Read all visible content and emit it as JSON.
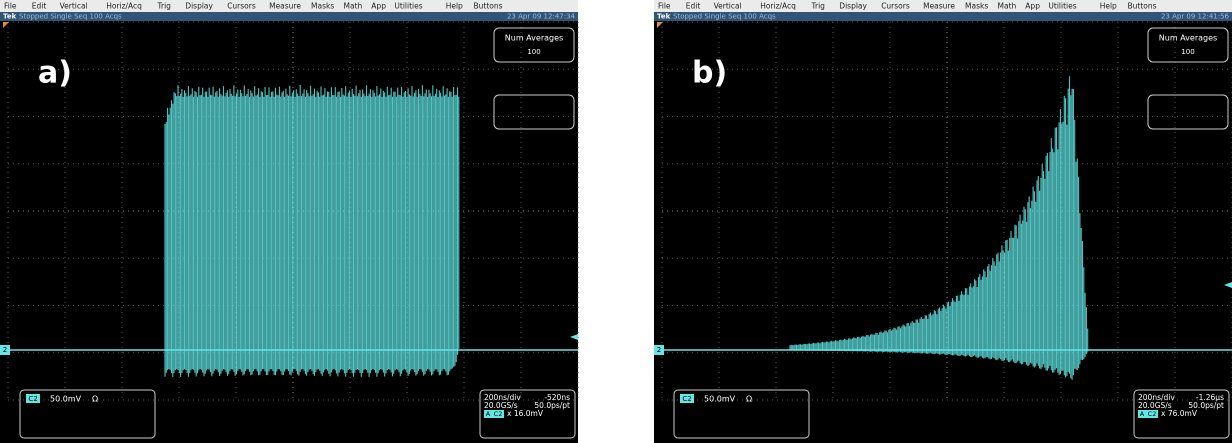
{
  "panels": [
    {
      "menu": [
        "File",
        "Edit",
        "Vertical",
        "Horiz/Acq",
        "Trig",
        "Display",
        "Cursors",
        "Measure",
        "Masks",
        "Math",
        "App",
        "Utilities",
        "Help",
        "Buttons"
      ],
      "status": {
        "brand": "Tek",
        "state": "Stopped Single Seq 100 Acqs",
        "timestamp": "23 Apr 09 12:47:34"
      },
      "label": "a)",
      "averages": {
        "title": "Num Averages",
        "value": "100"
      },
      "marker": "2",
      "channel": {
        "name": "C2",
        "scale": "50.0mV",
        "coupling": "Ω"
      },
      "timebase": {
        "division": "200ns/div",
        "delay": "-520ns",
        "rate": "20.0GS/s",
        "resolution": "50.0ps/pt",
        "trigger_source": "A",
        "trigger_channel": "C2",
        "trigger_level": "x 16.0mV"
      }
    },
    {
      "menu": [
        "File",
        "Edit",
        "Vertical",
        "Horiz/Acq",
        "Trig",
        "Display",
        "Cursors",
        "Measure",
        "Masks",
        "Math",
        "App",
        "Utilities",
        "Help",
        "Buttons"
      ],
      "status": {
        "brand": "Tek",
        "state": "Stopped Single Seq 100 Acqs",
        "timestamp": "23 Apr 09 12:41:56"
      },
      "label": "b)",
      "averages": {
        "title": "Num Averages",
        "value": "100"
      },
      "marker": "2",
      "channel": {
        "name": "C2",
        "scale": "50.0mV",
        "coupling": "Ω"
      },
      "timebase": {
        "division": "200ns/div",
        "delay": "-1.26µs",
        "rate": "20.0GS/s",
        "resolution": "50.0ps/pt",
        "trigger_source": "A",
        "trigger_channel": "C2",
        "trigger_level": "x 76.0mV"
      }
    }
  ]
}
